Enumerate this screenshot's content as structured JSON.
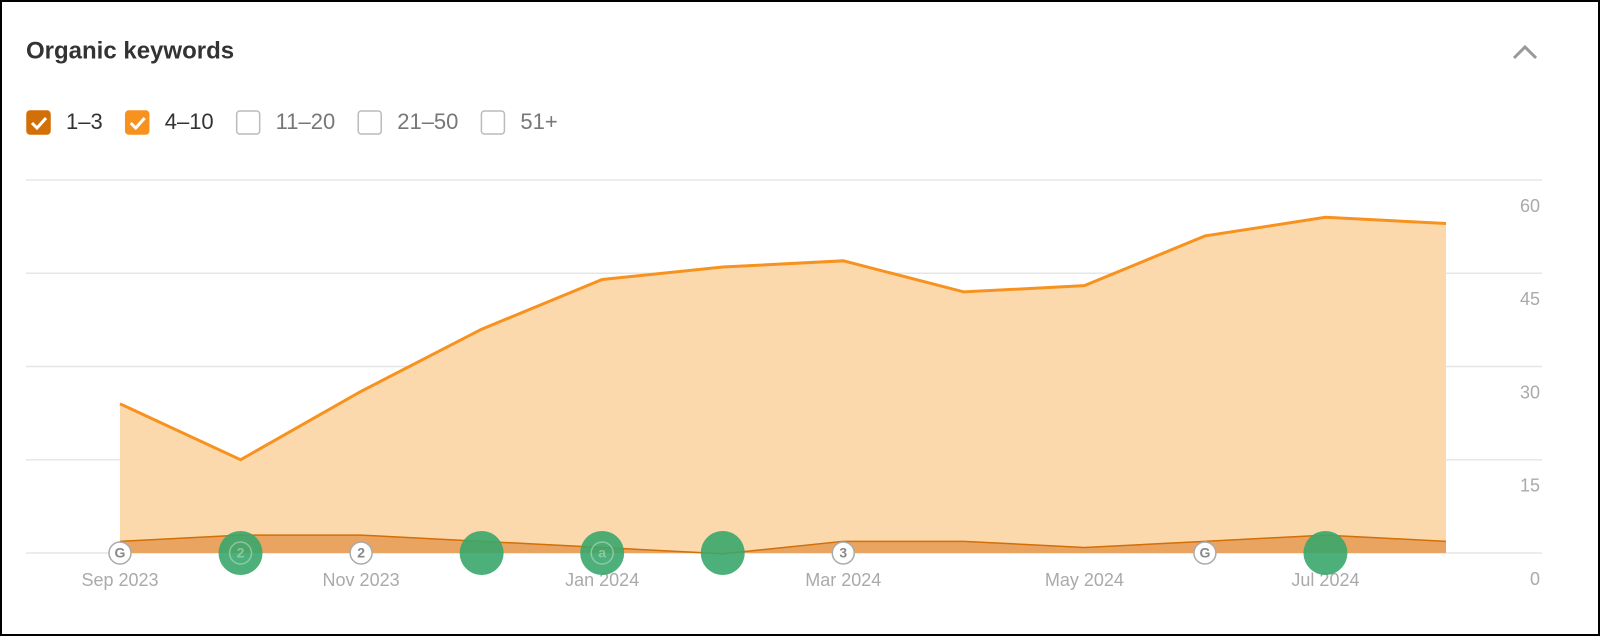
{
  "chart_data": {
    "type": "stacked-area",
    "title": "Organic keywords",
    "categories": [
      "Sep 2023",
      null,
      "Nov 2023",
      null,
      "Jan 2024",
      null,
      "Mar 2024",
      null,
      "May 2024",
      null,
      "Jul 2024",
      null
    ],
    "series": [
      {
        "name": "1–3",
        "checked": true,
        "color": "#d26f06",
        "fill": "#e9a462",
        "values": [
          2,
          3,
          3,
          2,
          1,
          0,
          2,
          2,
          1,
          2,
          3,
          2
        ]
      },
      {
        "name": "4–10",
        "checked": true,
        "color": "#f7921f",
        "fill": "#fcd9ad",
        "values": [
          22,
          12,
          23,
          34,
          43,
          46,
          45,
          40,
          42,
          49,
          51,
          51
        ]
      },
      {
        "name": "11–20",
        "checked": false
      },
      {
        "name": "21–50",
        "checked": false
      },
      {
        "name": "51+",
        "checked": false
      }
    ],
    "markers": [
      {
        "label": "G"
      },
      {
        "label": "2",
        "color": "#3aa66a"
      },
      {
        "label": "2"
      },
      {
        "color": "#3aa66a"
      },
      {
        "label": "a",
        "color": "#3aa66a"
      },
      {
        "color": "#3aa66a"
      },
      {
        "label": "3"
      },
      null,
      null,
      {
        "label": "G"
      },
      {
        "color": "#3aa66a"
      },
      null
    ],
    "ylim": [
      0,
      60
    ],
    "yticks": [
      0,
      15,
      30,
      45,
      60
    ],
    "y_axis_side": "right",
    "grid": true
  }
}
